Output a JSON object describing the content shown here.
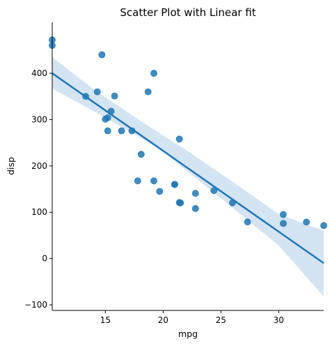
{
  "chart_data": {
    "type": "scatter",
    "title": "Scatter Plot with Linear fit",
    "xlabel": "mpg",
    "ylabel": "disp",
    "xlim": [
      10.4,
      33.9
    ],
    "ylim": [
      -112,
      510
    ],
    "xticks": [
      15,
      20,
      25,
      30
    ],
    "yticks": [
      -100,
      0,
      100,
      200,
      300,
      400
    ],
    "grid": false,
    "colors": {
      "points": "#1f77b4",
      "fit_line": "#1f77b4",
      "confidence_band": "#c6dbef"
    },
    "points": [
      {
        "x": 10.4,
        "y": 472
      },
      {
        "x": 10.4,
        "y": 460
      },
      {
        "x": 14.7,
        "y": 440
      },
      {
        "x": 19.2,
        "y": 400
      },
      {
        "x": 14.3,
        "y": 360
      },
      {
        "x": 18.7,
        "y": 360
      },
      {
        "x": 15.8,
        "y": 351
      },
      {
        "x": 13.3,
        "y": 350
      },
      {
        "x": 15.5,
        "y": 318
      },
      {
        "x": 15.2,
        "y": 304
      },
      {
        "x": 15.0,
        "y": 301
      },
      {
        "x": 15.2,
        "y": 275.8
      },
      {
        "x": 16.4,
        "y": 275.8
      },
      {
        "x": 17.3,
        "y": 275.8
      },
      {
        "x": 21.4,
        "y": 258
      },
      {
        "x": 18.1,
        "y": 225
      },
      {
        "x": 17.8,
        "y": 167.6
      },
      {
        "x": 19.2,
        "y": 167.6
      },
      {
        "x": 21.0,
        "y": 160
      },
      {
        "x": 21.0,
        "y": 160
      },
      {
        "x": 24.4,
        "y": 146.7
      },
      {
        "x": 19.7,
        "y": 145
      },
      {
        "x": 22.8,
        "y": 140.8
      },
      {
        "x": 26.0,
        "y": 120.3
      },
      {
        "x": 21.4,
        "y": 121
      },
      {
        "x": 21.5,
        "y": 120.1
      },
      {
        "x": 22.8,
        "y": 108
      },
      {
        "x": 30.4,
        "y": 95.1
      },
      {
        "x": 27.3,
        "y": 79
      },
      {
        "x": 32.4,
        "y": 78.7
      },
      {
        "x": 30.4,
        "y": 75.7
      },
      {
        "x": 33.9,
        "y": 71.1
      }
    ],
    "fit_line": {
      "x": [
        10.4,
        33.9
      ],
      "y": [
        400,
        -10
      ]
    },
    "confidence_band": {
      "x": [
        10.4,
        14,
        18,
        20.1,
        22,
        26,
        30,
        33.9
      ],
      "lower": [
        367,
        318,
        262,
        230,
        190,
        110,
        28,
        -82
      ],
      "upper": [
        435,
        365,
        298,
        264,
        234,
        166,
        96,
        60
      ]
    }
  }
}
